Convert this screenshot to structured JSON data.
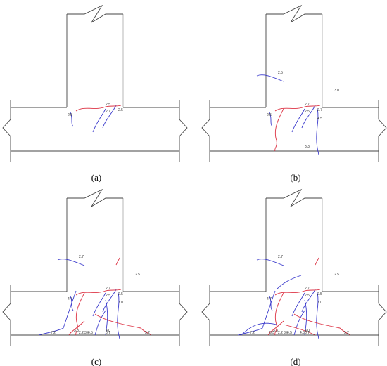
{
  "panels": [
    {
      "caption": "(a)",
      "labels": [
        "2.5",
        "2.5",
        "2.7",
        "2.5"
      ]
    },
    {
      "caption": "(b)",
      "labels": [
        "2.7",
        "2.5",
        "2.5",
        "2.7",
        "2.5",
        "3.0",
        "4.5",
        "3.3"
      ]
    },
    {
      "caption": "(c)",
      "labels": [
        "2.7",
        "4.7",
        "2.5",
        "2.5",
        "2.7",
        "2.5",
        "7.0",
        "4.0",
        "3.0",
        "3.3",
        "3.7",
        "4.5",
        "5.2",
        "7.2",
        "2.2"
      ]
    },
    {
      "caption": "(d)",
      "labels": [
        "2.7",
        "4.7",
        "2.5",
        "2.5",
        "2.7",
        "2.5",
        "7.0",
        "4.0",
        "3.0",
        "3.3",
        "3.7",
        "4.5",
        "5.2",
        "7.2",
        "2.2",
        "5.5",
        "4.3"
      ]
    }
  ]
}
